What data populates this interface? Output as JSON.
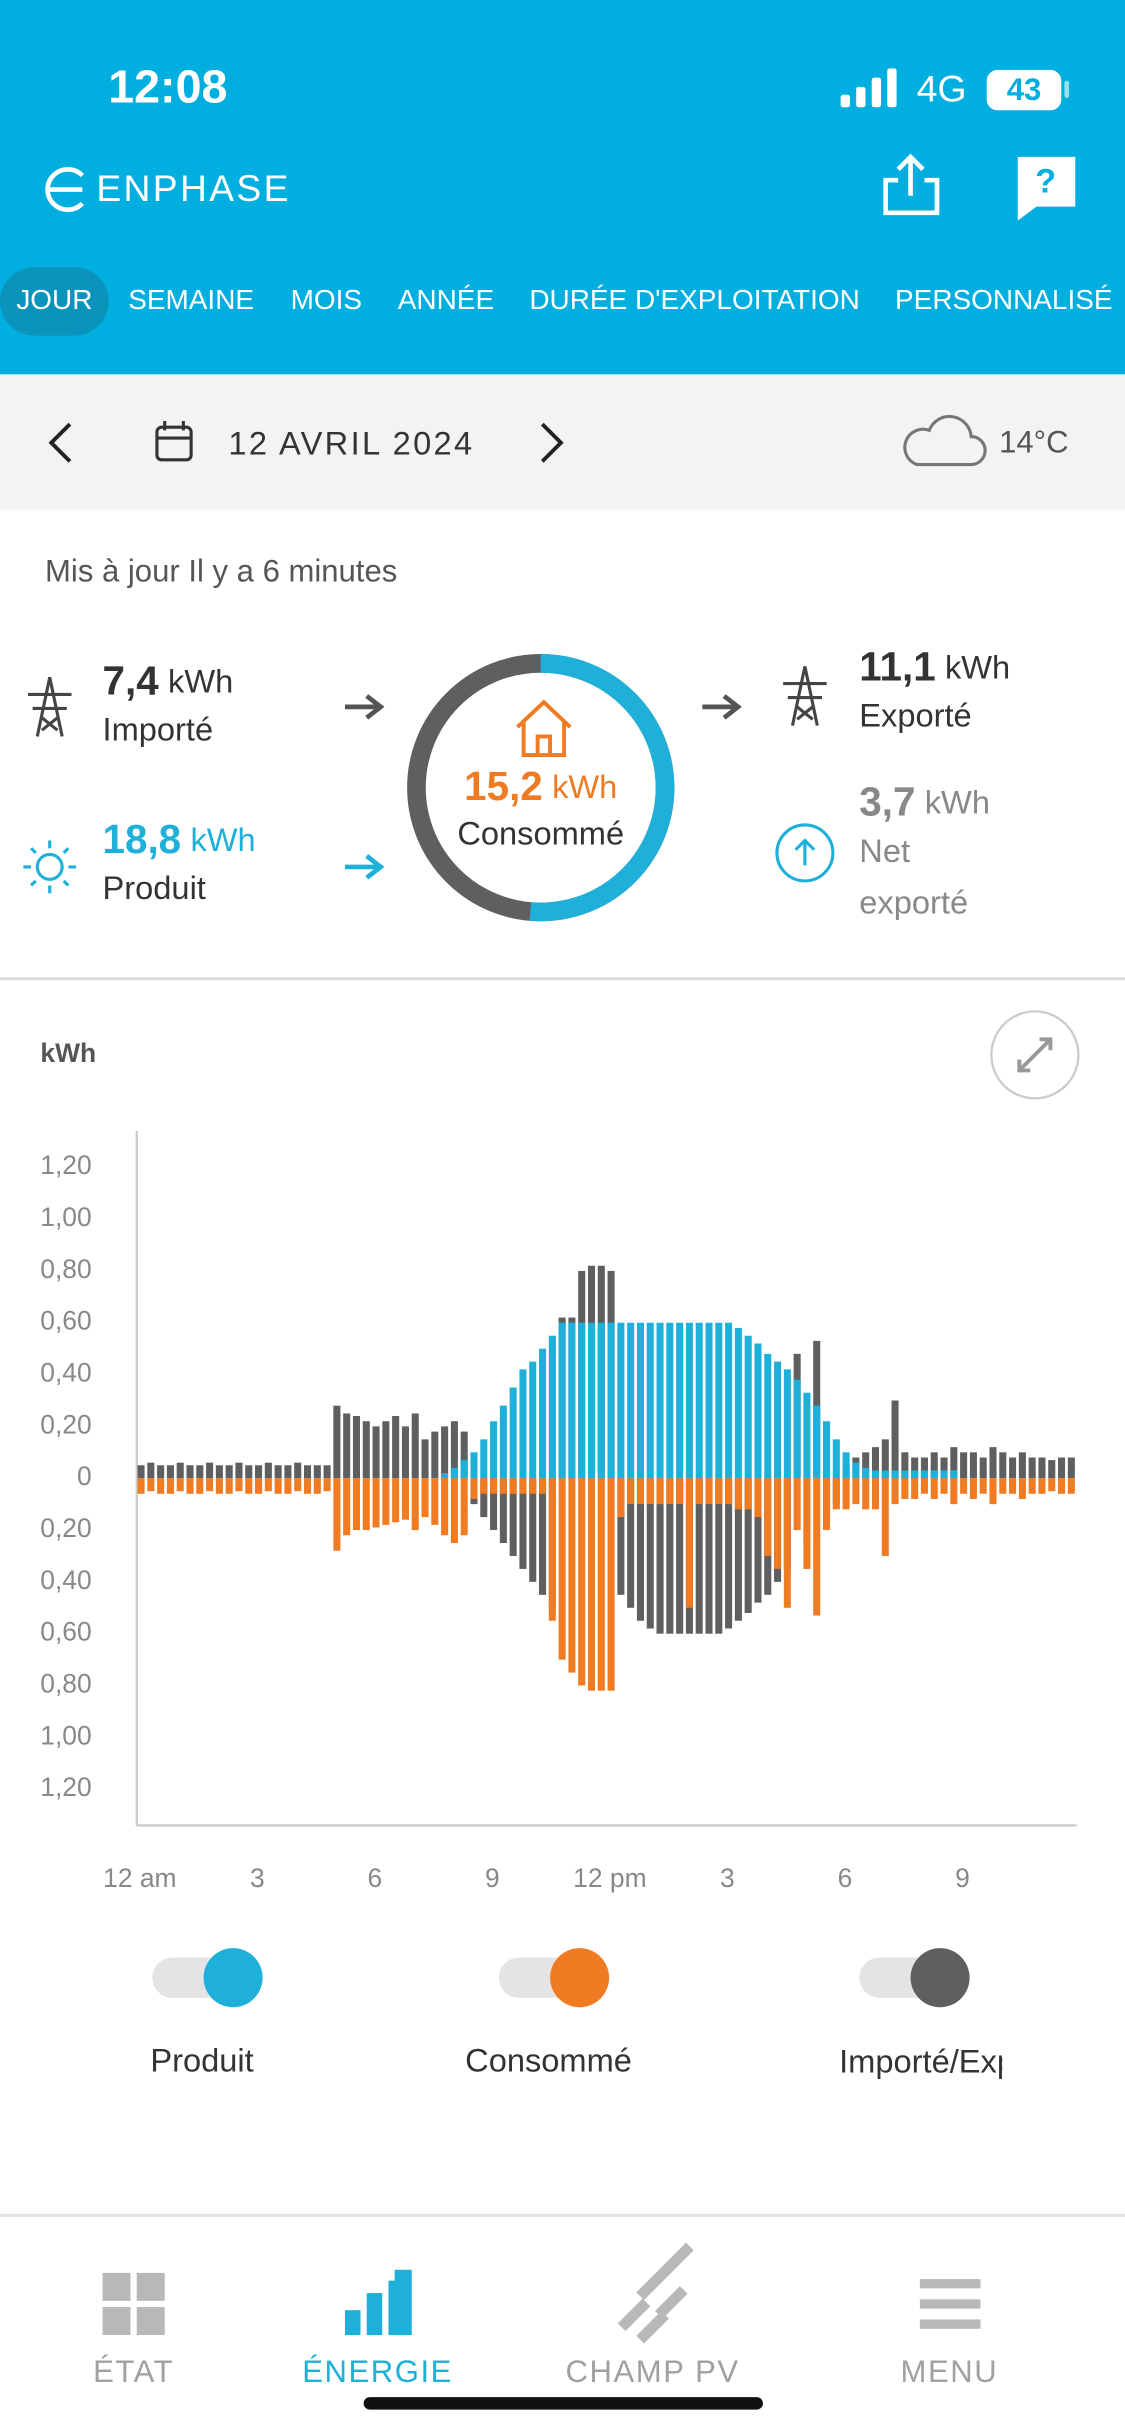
{
  "status": {
    "time": "12:08",
    "network": "4G",
    "battery": "43"
  },
  "header": {
    "logo": "ENPHASE"
  },
  "tabs": [
    "JOUR",
    "SEMAINE",
    "MOIS",
    "ANNÉE",
    "DURÉE D'EXPLOITATION",
    "PERSONNALISÉ"
  ],
  "date_bar": {
    "date": "12 AVRIL 2024",
    "temperature": "14°C"
  },
  "updated": "Mis à jour Il y a 6 minutes",
  "stats": {
    "imported": {
      "value": 7.4,
      "label": "7,4",
      "unit": "kWh",
      "caption": "Importé"
    },
    "produced": {
      "value": 18.8,
      "label": "18,8",
      "unit": "kWh",
      "caption": "Produit"
    },
    "consumed": {
      "value": 15.2,
      "label": "15,2",
      "unit": "kWh",
      "caption": "Consommé"
    },
    "exported": {
      "value": 11.1,
      "label": "11,1",
      "unit": "kWh",
      "caption": "Exporté"
    },
    "net_exported": {
      "value": 3.7,
      "label": "3,7",
      "unit": "kWh",
      "caption": "Net exporté"
    }
  },
  "chart_data": {
    "type": "bar",
    "y_label": "kWh",
    "x": [
      0,
      0.25,
      0.5,
      0.75,
      1,
      1.25,
      1.5,
      1.75,
      2,
      2.25,
      2.5,
      2.75,
      3,
      3.25,
      3.5,
      3.75,
      4,
      4.25,
      4.5,
      4.75,
      5,
      5.25,
      5.5,
      5.75,
      6,
      6.25,
      6.5,
      6.75,
      7,
      7.25,
      7.5,
      7.75,
      8,
      8.25,
      8.5,
      8.75,
      9,
      9.25,
      9.5,
      9.75,
      10,
      10.25,
      10.5,
      10.75,
      11,
      11.25,
      11.5,
      11.75,
      12,
      12.25,
      12.5,
      12.75,
      13,
      13.25,
      13.5,
      13.75,
      14,
      14.25,
      14.5,
      14.75,
      15,
      15.25,
      15.5,
      15.75,
      16,
      16.25,
      16.5,
      16.75,
      17,
      17.25,
      17.5,
      17.75,
      18,
      18.25,
      18.5,
      18.75,
      19,
      19.25,
      19.5,
      19.75,
      20,
      20.25,
      20.5,
      20.75,
      21,
      21.25,
      21.5,
      21.75,
      22,
      22.25,
      22.5,
      22.75,
      23,
      23.25,
      23.5,
      23.75
    ],
    "series": [
      {
        "name": "Produit",
        "color": "#1fb0d9",
        "values": [
          0,
          0,
          0,
          0,
          0,
          0,
          0,
          0,
          0,
          0,
          0,
          0,
          0,
          0,
          0,
          0,
          0,
          0,
          0,
          0,
          0,
          0,
          0,
          0,
          0,
          0,
          0,
          0,
          0,
          0,
          0,
          0.02,
          0.04,
          0.07,
          0.1,
          0.15,
          0.22,
          0.28,
          0.35,
          0.42,
          0.45,
          0.5,
          0.55,
          0.6,
          0.6,
          0.6,
          0.6,
          0.6,
          0.6,
          0.6,
          0.6,
          0.6,
          0.6,
          0.6,
          0.6,
          0.6,
          0.6,
          0.6,
          0.6,
          0.6,
          0.6,
          0.58,
          0.55,
          0.52,
          0.48,
          0.45,
          0.42,
          0.38,
          0.33,
          0.28,
          0.22,
          0.15,
          0.1,
          0.06,
          0.04,
          0.03,
          0.03,
          0.03,
          0.03,
          0.03,
          0.03,
          0.03,
          0.03,
          0.03,
          0,
          0,
          0,
          0,
          0,
          0,
          0,
          0,
          0,
          0,
          0,
          0
        ]
      },
      {
        "name": "Consommé",
        "color": "#f07b22",
        "values": [
          -0.06,
          -0.05,
          -0.06,
          -0.06,
          -0.05,
          -0.06,
          -0.06,
          -0.05,
          -0.06,
          -0.06,
          -0.05,
          -0.06,
          -0.06,
          -0.05,
          -0.06,
          -0.06,
          -0.05,
          -0.06,
          -0.06,
          -0.05,
          -0.28,
          -0.22,
          -0.2,
          -0.2,
          -0.19,
          -0.18,
          -0.17,
          -0.16,
          -0.2,
          -0.15,
          -0.18,
          -0.22,
          -0.25,
          -0.22,
          -0.08,
          -0.06,
          -0.06,
          -0.06,
          -0.06,
          -0.06,
          -0.06,
          -0.06,
          -0.55,
          -0.7,
          -0.75,
          -0.8,
          -0.82,
          -0.82,
          -0.82,
          -0.15,
          -0.1,
          -0.1,
          -0.1,
          -0.1,
          -0.1,
          -0.1,
          -0.5,
          -0.1,
          -0.1,
          -0.1,
          -0.1,
          -0.12,
          -0.12,
          -0.15,
          -0.3,
          -0.35,
          -0.5,
          -0.2,
          -0.35,
          -0.53,
          -0.2,
          -0.12,
          -0.12,
          -0.1,
          -0.12,
          -0.12,
          -0.3,
          -0.1,
          -0.08,
          -0.08,
          -0.06,
          -0.08,
          -0.06,
          -0.1,
          -0.06,
          -0.08,
          -0.06,
          -0.1,
          -0.06,
          -0.06,
          -0.08,
          -0.06,
          -0.06,
          -0.05,
          -0.06,
          -0.06
        ]
      },
      {
        "name": "Importé/Exporté",
        "color": "#5e5f61",
        "values": [
          0.05,
          0.06,
          0.05,
          0.05,
          0.06,
          0.05,
          0.05,
          0.06,
          0.05,
          0.05,
          0.06,
          0.05,
          0.05,
          0.06,
          0.05,
          0.05,
          0.06,
          0.05,
          0.05,
          0.05,
          0.28,
          0.25,
          0.24,
          0.22,
          0.2,
          0.22,
          0.24,
          0.2,
          0.25,
          0.15,
          0.18,
          0.2,
          0.22,
          0.18,
          -0.1,
          -0.15,
          -0.2,
          -0.25,
          -0.3,
          -0.35,
          -0.4,
          -0.45,
          -0.5,
          0.62,
          0.62,
          0.8,
          0.82,
          0.82,
          0.8,
          -0.45,
          -0.5,
          -0.55,
          -0.58,
          -0.6,
          -0.6,
          -0.6,
          -0.6,
          -0.6,
          -0.6,
          -0.6,
          -0.58,
          -0.55,
          -0.52,
          -0.48,
          -0.45,
          -0.4,
          -0.35,
          0.48,
          -0.25,
          0.53,
          -0.15,
          -0.1,
          0.05,
          0.08,
          0.1,
          0.12,
          0.15,
          0.3,
          0.1,
          0.08,
          0.08,
          0.1,
          0.08,
          0.12,
          0.1,
          0.1,
          0.08,
          0.12,
          0.1,
          0.08,
          0.1,
          0.08,
          0.08,
          0.07,
          0.08,
          0.08
        ]
      }
    ],
    "xlim": [
      0,
      24
    ],
    "xticks": [
      {
        "value": 0,
        "label": "12 am"
      },
      3,
      6,
      9,
      {
        "value": 12,
        "label": "12 pm"
      },
      {
        "value": 15,
        "label": "3"
      },
      {
        "value": 18,
        "label": "6"
      },
      {
        "value": 21,
        "label": "9"
      }
    ],
    "ylim": [
      -1.34,
      1.34
    ],
    "yticks": [
      {
        "value": 1.2,
        "label": "1,20"
      },
      {
        "value": 1,
        "label": "1,00"
      },
      {
        "value": 0.8,
        "label": "0,80"
      },
      {
        "value": 0.6,
        "label": "0,60"
      },
      {
        "value": 0.4,
        "label": "0,40"
      },
      {
        "value": 0.2,
        "label": "0,20"
      },
      0,
      {
        "value": -0.2,
        "label": "0,20"
      },
      {
        "value": -0.4,
        "label": "0,40"
      },
      {
        "value": -0.6,
        "label": "0,60"
      },
      {
        "value": -0.8,
        "label": "0,80"
      },
      {
        "value": -1,
        "label": "1,00"
      },
      {
        "value": -1.2,
        "label": "1,20"
      }
    ],
    "grid": false
  },
  "nav": [
    "ÉTAT",
    "ÉNERGIE",
    "CHAMP PV",
    "MENU"
  ]
}
